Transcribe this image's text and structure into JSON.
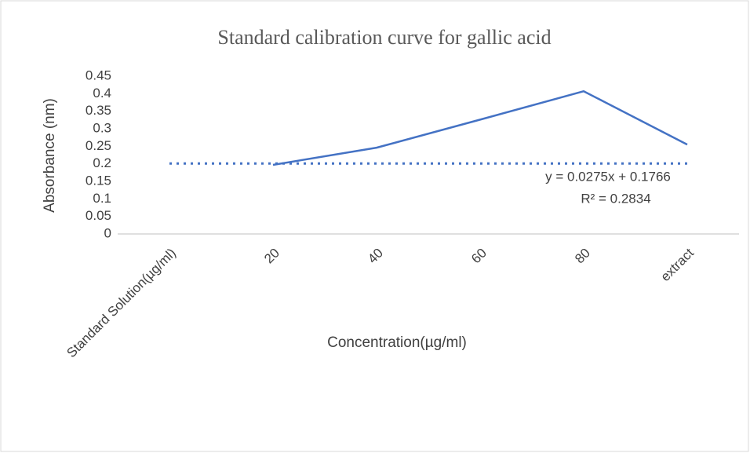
{
  "chart_data": {
    "type": "line",
    "title": "Standard calibration curve for gallic acid",
    "x_label": "Concentration(µg/ml)",
    "y_label": "Absorbance (nm)",
    "categories": [
      "Standard Solution(µg/ml)",
      "20",
      "40",
      "60",
      "80",
      "extract"
    ],
    "values": [
      null,
      0.197,
      0.246,
      0.326,
      0.407,
      0.255
    ],
    "color": "#4472c4",
    "trendline": {
      "values": [
        0.201,
        0.201,
        0.201,
        0.201,
        0.201,
        0.201
      ],
      "color": "#4472c4"
    },
    "annotations": [
      "y = 0.0275x + 0.1766",
      "R² = 0.2834"
    ],
    "ylim": [
      0,
      0.45
    ],
    "yticks": [
      0,
      0.05,
      0.1,
      0.15,
      0.2,
      0.25,
      0.3,
      0.35,
      0.4,
      0.45
    ],
    "grid": false
  }
}
